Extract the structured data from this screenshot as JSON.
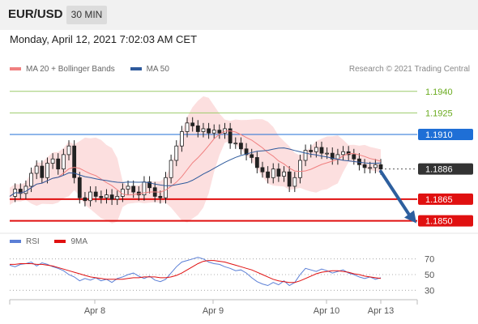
{
  "header": {
    "symbol": "EUR/USD",
    "timeframe": "30 MIN",
    "datetime": "Monday, April 12, 2021 7:02:03 AM CET"
  },
  "legend": {
    "ma20": "MA 20 + Bollinger Bands",
    "ma50": "MA 50",
    "credit": "Research © 2021 Trading Central",
    "rsi": "RSI",
    "rsi_ma": "9MA"
  },
  "colors": {
    "resistance": "#6aab1f",
    "pivot": "#1f6fd6",
    "support": "#e01010",
    "current": "#333333",
    "ma20": "#f08080",
    "ma50": "#2e5a9c",
    "bollinger": "#fbd9d9",
    "rsi": "#5b7fd6",
    "rsi_ma": "#e01010",
    "arrow": "#2d5f9e"
  },
  "chart_data": [
    {
      "type": "line",
      "title": "",
      "ylim": [
        1.1843,
        1.195
      ],
      "x_ticks": [
        "Apr 8",
        "Apr 9",
        "Apr 10",
        "Apr 13"
      ],
      "levels": [
        {
          "name": "resistance-2",
          "value": 1.194,
          "label": "1.1940"
        },
        {
          "name": "resistance-1",
          "value": 1.1925,
          "label": "1.1925"
        },
        {
          "name": "pivot",
          "value": 1.191,
          "label": "1.1910"
        },
        {
          "name": "current",
          "value": 1.1886,
          "label": "1.1886"
        },
        {
          "name": "support-1",
          "value": 1.1865,
          "label": "1.1865"
        },
        {
          "name": "support-2",
          "value": 1.185,
          "label": "1.1850"
        }
      ],
      "series": [
        {
          "name": "",
          "values": [
            1.1867,
            1.1872,
            1.1869,
            1.1874,
            1.1883,
            1.1888,
            1.188,
            1.189,
            1.1893,
            1.1886,
            1.1896,
            1.1902,
            1.188,
            1.1866,
            1.1864,
            1.187,
            1.1867,
            1.1866,
            1.1868,
            1.1865,
            1.1867,
            1.1872,
            1.1874,
            1.187,
            1.1868,
            1.1877,
            1.1873,
            1.1867,
            1.1866,
            1.188,
            1.1892,
            1.1902,
            1.1912,
            1.1918,
            1.1916,
            1.1912,
            1.1914,
            1.1911,
            1.1913,
            1.1911,
            1.1914,
            1.1904,
            1.1904,
            1.19,
            1.1896,
            1.1894,
            1.1887,
            1.1884,
            1.188,
            1.1886,
            1.1881,
            1.1884,
            1.1874,
            1.188,
            1.1892,
            1.1899,
            1.1898,
            1.1901,
            1.1897,
            1.1897,
            1.1893,
            1.1896,
            1.1898,
            1.1896,
            1.1893,
            1.1889,
            1.1887,
            1.1887,
            1.1889,
            1.1886
          ]
        }
      ]
    },
    {
      "type": "line",
      "title": "",
      "ylim": [
        20,
        80
      ],
      "y_ticks": [
        70,
        50,
        30
      ],
      "series": [
        {
          "name": "RSI",
          "values": [
            62,
            60,
            63,
            64,
            66,
            61,
            65,
            63,
            60,
            58,
            55,
            50,
            47,
            42,
            45,
            43,
            46,
            42,
            44,
            40,
            45,
            47,
            50,
            52,
            48,
            45,
            48,
            43,
            41,
            44,
            52,
            60,
            66,
            68,
            70,
            72,
            70,
            66,
            64,
            63,
            60,
            58,
            55,
            56,
            52,
            46,
            41,
            38,
            36,
            40,
            37,
            42,
            36,
            40,
            50,
            58,
            56,
            54,
            57,
            55,
            52,
            54,
            56,
            52,
            50,
            47,
            45,
            47,
            44,
            46
          ]
        },
        {
          "name": "9MA",
          "values": [
            63,
            63,
            64,
            64,
            64,
            63,
            63,
            62,
            61,
            59,
            57,
            55,
            53,
            51,
            49,
            47,
            46,
            45,
            44,
            44,
            44,
            44,
            45,
            46,
            46,
            47,
            47,
            47,
            46,
            46,
            47,
            49,
            52,
            56,
            60,
            64,
            67,
            68,
            68,
            67,
            66,
            64,
            62,
            60,
            58,
            56,
            53,
            50,
            47,
            44,
            42,
            41,
            40,
            40,
            42,
            45,
            48,
            51,
            53,
            54,
            55,
            55,
            54,
            53,
            51,
            50,
            48,
            47,
            46,
            45
          ]
        }
      ]
    }
  ]
}
